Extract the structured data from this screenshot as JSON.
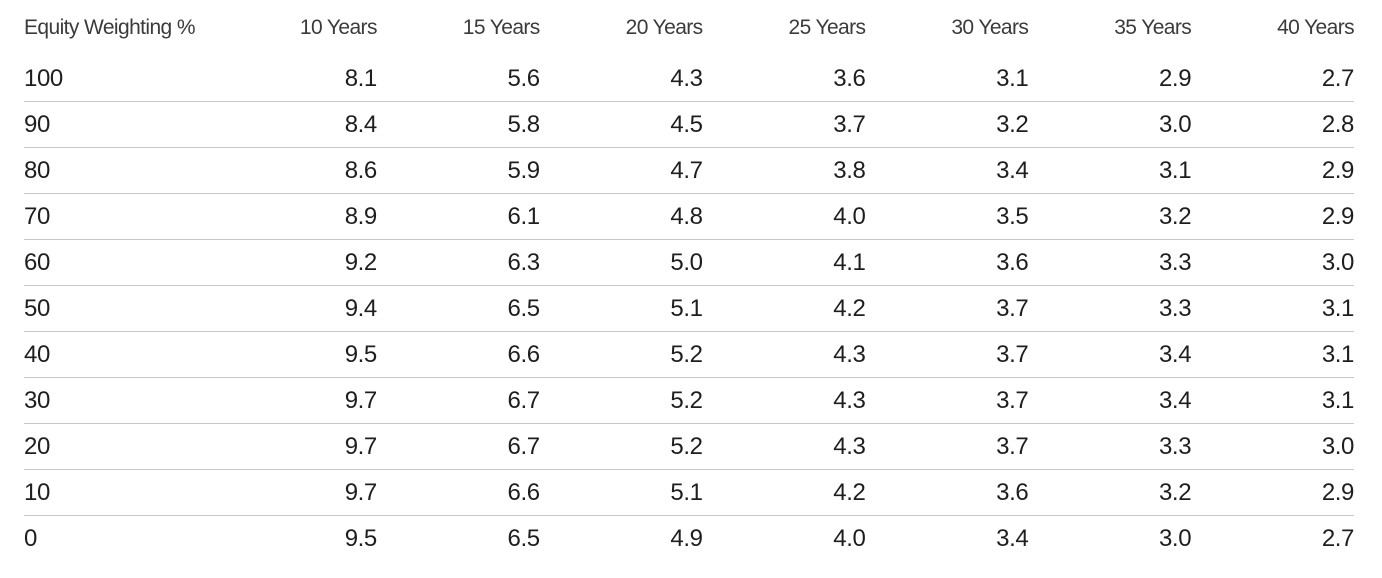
{
  "chart_data": {
    "type": "table",
    "title": "",
    "columns": [
      "Equity Weighting %",
      "10 Years",
      "15 Years",
      "20 Years",
      "25 Years",
      "30 Years",
      "35 Years",
      "40 Years"
    ],
    "rows": [
      [
        "100",
        "8.1",
        "5.6",
        "4.3",
        "3.6",
        "3.1",
        "2.9",
        "2.7"
      ],
      [
        "90",
        "8.4",
        "5.8",
        "4.5",
        "3.7",
        "3.2",
        "3.0",
        "2.8"
      ],
      [
        "80",
        "8.6",
        "5.9",
        "4.7",
        "3.8",
        "3.4",
        "3.1",
        "2.9"
      ],
      [
        "70",
        "8.9",
        "6.1",
        "4.8",
        "4.0",
        "3.5",
        "3.2",
        "2.9"
      ],
      [
        "60",
        "9.2",
        "6.3",
        "5.0",
        "4.1",
        "3.6",
        "3.3",
        "3.0"
      ],
      [
        "50",
        "9.4",
        "6.5",
        "5.1",
        "4.2",
        "3.7",
        "3.3",
        "3.1"
      ],
      [
        "40",
        "9.5",
        "6.6",
        "5.2",
        "4.3",
        "3.7",
        "3.4",
        "3.1"
      ],
      [
        "30",
        "9.7",
        "6.7",
        "5.2",
        "4.3",
        "3.7",
        "3.4",
        "3.1"
      ],
      [
        "20",
        "9.7",
        "6.7",
        "5.2",
        "4.3",
        "3.7",
        "3.3",
        "3.0"
      ],
      [
        "10",
        "9.7",
        "6.6",
        "5.1",
        "4.2",
        "3.6",
        "3.2",
        "2.9"
      ],
      [
        "0",
        "9.5",
        "6.5",
        "4.9",
        "4.0",
        "3.4",
        "3.0",
        "2.7"
      ]
    ]
  },
  "colors": {
    "text": "#1e1e1e",
    "header_text": "#3b3b3b",
    "divider": "#c8c8c8",
    "background": "#ffffff"
  }
}
